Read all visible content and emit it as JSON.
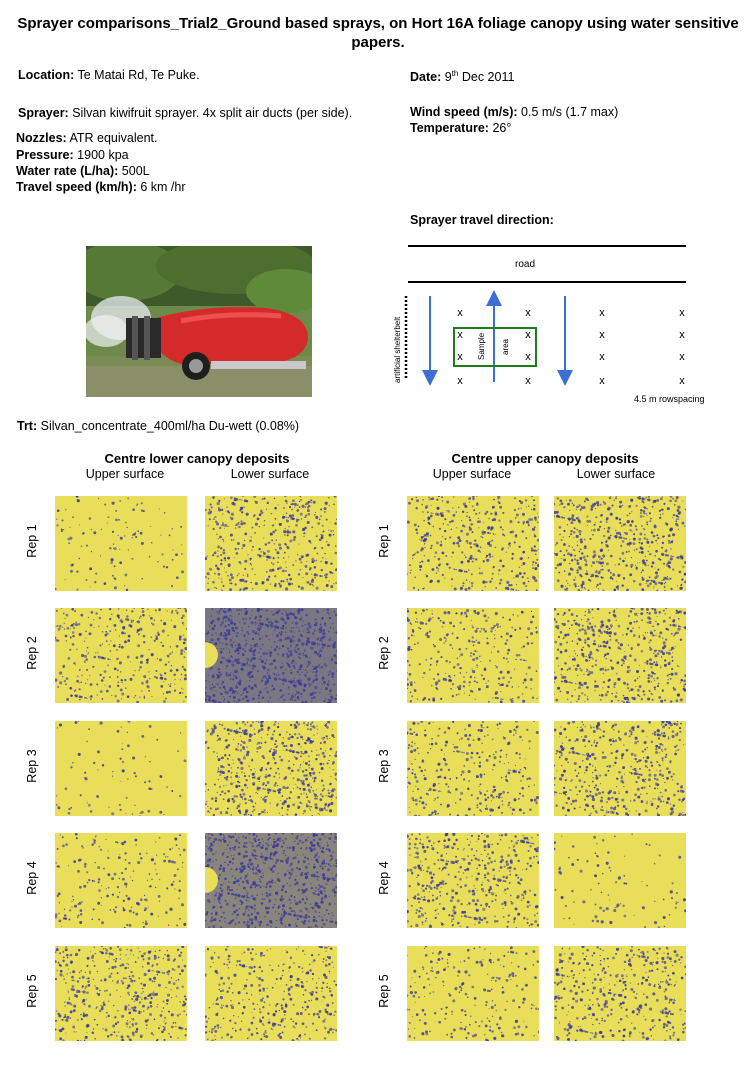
{
  "title": "Sprayer comparisons_Trial2_Ground based sprays, on Hort 16A foliage canopy using water sensitive papers.",
  "details_left": {
    "location_label": "Location:",
    "location_value": " Te Matai Rd, Te Puke.",
    "sprayer_label": "Sprayer:",
    "sprayer_value": " Silvan kiwifruit sprayer. 4x split air ducts (per side).",
    "nozzles_label": "Nozzles:",
    "nozzles_value": " ATR equivalent.",
    "pressure_label": "Pressure:",
    "pressure_value": " 1900 kpa",
    "water_label": "Water rate (L/ha):",
    "water_value": " 500L",
    "travel_label": "Travel speed (km/h):",
    "travel_value": " 6 km /hr"
  },
  "details_right": {
    "date_label": "Date:",
    "date_day": " 9",
    "date_suffix": "th",
    "date_rest": " Dec 2011",
    "wind_label": "Wind speed (m/s):",
    "wind_value": " 0.5 m/s (1.7 max)",
    "temp_label": "Temperature:",
    "temp_value": " 26°"
  },
  "diagram": {
    "heading": "Sprayer travel direction:",
    "road": "road",
    "shelterbelt": "artificial shelterbelt",
    "sample": "Sample",
    "area": "area",
    "marker": "x",
    "spacing": "4.5 m rowspacing"
  },
  "treatment": {
    "label": "Trt:",
    "value": " Silvan_concentrate_400ml/ha Du-wett (0.08%)"
  },
  "groups": [
    {
      "title": "Centre lower canopy deposits",
      "upper": "Upper surface",
      "lower": "Lower surface",
      "coverage_upper": [
        0.08,
        0.35,
        0.04,
        0.18,
        0.45
      ],
      "coverage_lower": [
        0.45,
        0.85,
        0.6,
        0.8,
        0.35
      ]
    },
    {
      "title": "Centre upper canopy deposits",
      "upper": "Upper surface",
      "lower": "Lower surface",
      "coverage_upper": [
        0.4,
        0.3,
        0.3,
        0.45,
        0.2
      ],
      "coverage_lower": [
        0.55,
        0.5,
        0.45,
        0.06,
        0.4
      ]
    }
  ],
  "reps": [
    "Rep 1",
    "Rep 2",
    "Rep 3",
    "Rep 4",
    "Rep 5"
  ],
  "colors": {
    "paper": "#e9de5a",
    "dye": "#3a3a9a",
    "arrow": "#3b6fd4",
    "sample_box": "#1e7a1e"
  }
}
